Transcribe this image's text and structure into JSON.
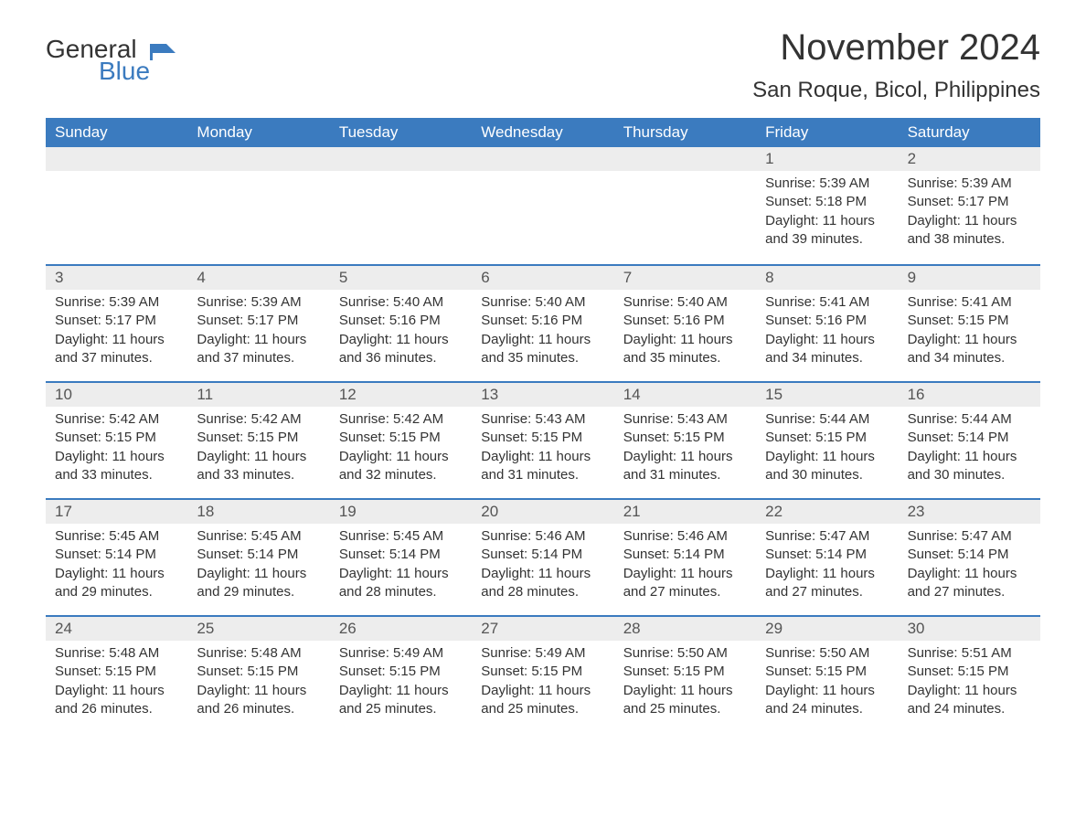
{
  "logo": {
    "general": "General",
    "blue": "Blue"
  },
  "title": "November 2024",
  "location": "San Roque, Bicol, Philippines",
  "colors": {
    "header_bg": "#3b7bbf",
    "header_text": "#ffffff",
    "daynum_bg": "#ededed",
    "border": "#3b7bbf",
    "text": "#333333"
  },
  "weekdays": [
    "Sunday",
    "Monday",
    "Tuesday",
    "Wednesday",
    "Thursday",
    "Friday",
    "Saturday"
  ],
  "weeks": [
    [
      {
        "empty": true
      },
      {
        "empty": true
      },
      {
        "empty": true
      },
      {
        "empty": true
      },
      {
        "empty": true
      },
      {
        "day": "1",
        "sunrise": "Sunrise: 5:39 AM",
        "sunset": "Sunset: 5:18 PM",
        "daylight": "Daylight: 11 hours and 39 minutes."
      },
      {
        "day": "2",
        "sunrise": "Sunrise: 5:39 AM",
        "sunset": "Sunset: 5:17 PM",
        "daylight": "Daylight: 11 hours and 38 minutes."
      }
    ],
    [
      {
        "day": "3",
        "sunrise": "Sunrise: 5:39 AM",
        "sunset": "Sunset: 5:17 PM",
        "daylight": "Daylight: 11 hours and 37 minutes."
      },
      {
        "day": "4",
        "sunrise": "Sunrise: 5:39 AM",
        "sunset": "Sunset: 5:17 PM",
        "daylight": "Daylight: 11 hours and 37 minutes."
      },
      {
        "day": "5",
        "sunrise": "Sunrise: 5:40 AM",
        "sunset": "Sunset: 5:16 PM",
        "daylight": "Daylight: 11 hours and 36 minutes."
      },
      {
        "day": "6",
        "sunrise": "Sunrise: 5:40 AM",
        "sunset": "Sunset: 5:16 PM",
        "daylight": "Daylight: 11 hours and 35 minutes."
      },
      {
        "day": "7",
        "sunrise": "Sunrise: 5:40 AM",
        "sunset": "Sunset: 5:16 PM",
        "daylight": "Daylight: 11 hours and 35 minutes."
      },
      {
        "day": "8",
        "sunrise": "Sunrise: 5:41 AM",
        "sunset": "Sunset: 5:16 PM",
        "daylight": "Daylight: 11 hours and 34 minutes."
      },
      {
        "day": "9",
        "sunrise": "Sunrise: 5:41 AM",
        "sunset": "Sunset: 5:15 PM",
        "daylight": "Daylight: 11 hours and 34 minutes."
      }
    ],
    [
      {
        "day": "10",
        "sunrise": "Sunrise: 5:42 AM",
        "sunset": "Sunset: 5:15 PM",
        "daylight": "Daylight: 11 hours and 33 minutes."
      },
      {
        "day": "11",
        "sunrise": "Sunrise: 5:42 AM",
        "sunset": "Sunset: 5:15 PM",
        "daylight": "Daylight: 11 hours and 33 minutes."
      },
      {
        "day": "12",
        "sunrise": "Sunrise: 5:42 AM",
        "sunset": "Sunset: 5:15 PM",
        "daylight": "Daylight: 11 hours and 32 minutes."
      },
      {
        "day": "13",
        "sunrise": "Sunrise: 5:43 AM",
        "sunset": "Sunset: 5:15 PM",
        "daylight": "Daylight: 11 hours and 31 minutes."
      },
      {
        "day": "14",
        "sunrise": "Sunrise: 5:43 AM",
        "sunset": "Sunset: 5:15 PM",
        "daylight": "Daylight: 11 hours and 31 minutes."
      },
      {
        "day": "15",
        "sunrise": "Sunrise: 5:44 AM",
        "sunset": "Sunset: 5:15 PM",
        "daylight": "Daylight: 11 hours and 30 minutes."
      },
      {
        "day": "16",
        "sunrise": "Sunrise: 5:44 AM",
        "sunset": "Sunset: 5:14 PM",
        "daylight": "Daylight: 11 hours and 30 minutes."
      }
    ],
    [
      {
        "day": "17",
        "sunrise": "Sunrise: 5:45 AM",
        "sunset": "Sunset: 5:14 PM",
        "daylight": "Daylight: 11 hours and 29 minutes."
      },
      {
        "day": "18",
        "sunrise": "Sunrise: 5:45 AM",
        "sunset": "Sunset: 5:14 PM",
        "daylight": "Daylight: 11 hours and 29 minutes."
      },
      {
        "day": "19",
        "sunrise": "Sunrise: 5:45 AM",
        "sunset": "Sunset: 5:14 PM",
        "daylight": "Daylight: 11 hours and 28 minutes."
      },
      {
        "day": "20",
        "sunrise": "Sunrise: 5:46 AM",
        "sunset": "Sunset: 5:14 PM",
        "daylight": "Daylight: 11 hours and 28 minutes."
      },
      {
        "day": "21",
        "sunrise": "Sunrise: 5:46 AM",
        "sunset": "Sunset: 5:14 PM",
        "daylight": "Daylight: 11 hours and 27 minutes."
      },
      {
        "day": "22",
        "sunrise": "Sunrise: 5:47 AM",
        "sunset": "Sunset: 5:14 PM",
        "daylight": "Daylight: 11 hours and 27 minutes."
      },
      {
        "day": "23",
        "sunrise": "Sunrise: 5:47 AM",
        "sunset": "Sunset: 5:14 PM",
        "daylight": "Daylight: 11 hours and 27 minutes."
      }
    ],
    [
      {
        "day": "24",
        "sunrise": "Sunrise: 5:48 AM",
        "sunset": "Sunset: 5:15 PM",
        "daylight": "Daylight: 11 hours and 26 minutes."
      },
      {
        "day": "25",
        "sunrise": "Sunrise: 5:48 AM",
        "sunset": "Sunset: 5:15 PM",
        "daylight": "Daylight: 11 hours and 26 minutes."
      },
      {
        "day": "26",
        "sunrise": "Sunrise: 5:49 AM",
        "sunset": "Sunset: 5:15 PM",
        "daylight": "Daylight: 11 hours and 25 minutes."
      },
      {
        "day": "27",
        "sunrise": "Sunrise: 5:49 AM",
        "sunset": "Sunset: 5:15 PM",
        "daylight": "Daylight: 11 hours and 25 minutes."
      },
      {
        "day": "28",
        "sunrise": "Sunrise: 5:50 AM",
        "sunset": "Sunset: 5:15 PM",
        "daylight": "Daylight: 11 hours and 25 minutes."
      },
      {
        "day": "29",
        "sunrise": "Sunrise: 5:50 AM",
        "sunset": "Sunset: 5:15 PM",
        "daylight": "Daylight: 11 hours and 24 minutes."
      },
      {
        "day": "30",
        "sunrise": "Sunrise: 5:51 AM",
        "sunset": "Sunset: 5:15 PM",
        "daylight": "Daylight: 11 hours and 24 minutes."
      }
    ]
  ]
}
